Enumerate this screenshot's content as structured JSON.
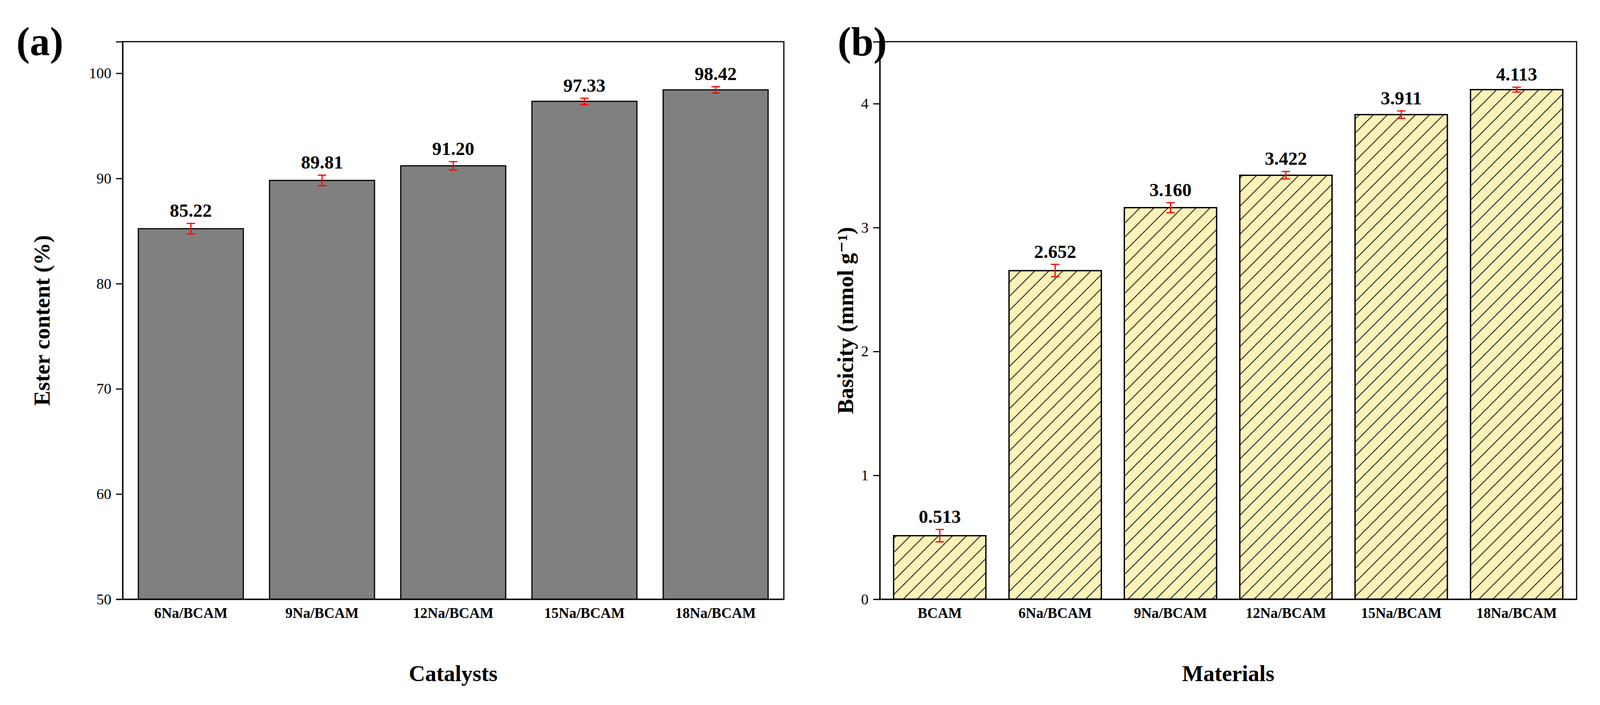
{
  "chart_data": [
    {
      "type": "bar",
      "title": "(a)",
      "x_label": "Catalysts",
      "y_label": "Ester content (%)",
      "categories": [
        "6Na/BCAM",
        "9Na/BCAM",
        "12Na/BCAM",
        "15Na/BCAM",
        "18Na/BCAM"
      ],
      "values": [
        85.22,
        89.81,
        91.2,
        97.33,
        98.42
      ],
      "value_labels": [
        "85.22",
        "89.81",
        "91.20",
        "97.33",
        "98.42"
      ],
      "errors": [
        0.5,
        0.5,
        0.4,
        0.3,
        0.3
      ],
      "color": "#808080",
      "ylim": [
        50,
        103
      ],
      "yticks": [
        50,
        60,
        70,
        80,
        90,
        100
      ],
      "data_labels": true,
      "grid": false
    },
    {
      "type": "bar",
      "title": "(b)",
      "x_label": "Materials",
      "y_label": "Basicity (mmol g⁻¹)",
      "categories": [
        "BCAM",
        "6Na/BCAM",
        "9Na/BCAM",
        "12Na/BCAM",
        "15Na/BCAM",
        "18Na/BCAM"
      ],
      "values": [
        0.513,
        2.652,
        3.16,
        3.422,
        3.911,
        4.113
      ],
      "value_labels": [
        "0.513",
        "2.652",
        "3.160",
        "3.422",
        "3.911",
        "4.113"
      ],
      "errors": [
        0.05,
        0.05,
        0.04,
        0.03,
        0.03,
        0.02
      ],
      "color": "#fdf2b8",
      "ylim": [
        0,
        4.5
      ],
      "yticks": [
        0,
        1,
        2,
        3,
        4
      ],
      "data_labels": true,
      "grid": false
    }
  ]
}
